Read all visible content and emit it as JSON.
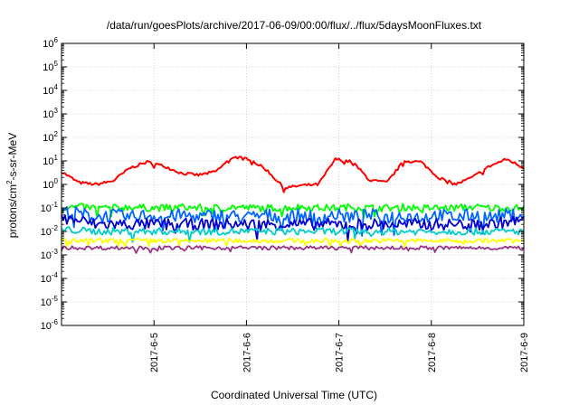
{
  "chart_data": {
    "type": "line",
    "title": "/data/run/goesPlots/archive/2017-06-09/00:00/flux/../flux/5daysMoonFluxes.txt",
    "xlabel": "Coordinated Universal Time (UTC)",
    "ylabel": "protons/cm2-s-sr-MeV",
    "y_scale": "log",
    "ylim": [
      1e-06,
      1000000.0
    ],
    "y_ticks": [
      {
        "base": "10",
        "exp": "-6"
      },
      {
        "base": "10",
        "exp": "-5"
      },
      {
        "base": "10",
        "exp": "-4"
      },
      {
        "base": "10",
        "exp": "-3"
      },
      {
        "base": "10",
        "exp": "-2"
      },
      {
        "base": "10",
        "exp": "-1"
      },
      {
        "base": "10",
        "exp": "0"
      },
      {
        "base": "10",
        "exp": "1"
      },
      {
        "base": "10",
        "exp": "2"
      },
      {
        "base": "10",
        "exp": "3"
      },
      {
        "base": "10",
        "exp": "4"
      },
      {
        "base": "10",
        "exp": "5"
      },
      {
        "base": "10",
        "exp": "6"
      }
    ],
    "xlim": [
      "2017-06-04 00:00",
      "2017-06-09 00:00"
    ],
    "x_ticks": [
      "2017-6-5",
      "2017-6-6",
      "2017-6-7",
      "2017-6-8",
      "2017-6-9"
    ],
    "grid": true,
    "series": [
      {
        "color": "#ff0000",
        "base_values": [
          3.5,
          1.2,
          1.0,
          1.4,
          5.0,
          9.0,
          6.0,
          3.0,
          2.5,
          3.5,
          15.0,
          12.0,
          4.0,
          0.7,
          0.9,
          1.0,
          12.0,
          9.0,
          1.5,
          1.2,
          10.0,
          9.0,
          2.0,
          1.0,
          2.0,
          6.0,
          12.0,
          5.0
        ]
      },
      {
        "color": "#00ff00",
        "base_values": [
          0.1,
          0.11,
          0.1,
          0.1,
          0.11,
          0.1,
          0.1,
          0.11,
          0.1,
          0.1,
          0.11,
          0.1,
          0.1,
          0.1,
          0.11,
          0.1,
          0.1,
          0.11,
          0.1,
          0.1,
          0.11,
          0.1,
          0.1,
          0.1,
          0.11,
          0.1,
          0.1,
          0.1
        ]
      },
      {
        "color": "#0066ff",
        "base_values": [
          0.07,
          0.06,
          0.04,
          0.05,
          0.04,
          0.05,
          0.04,
          0.05,
          0.04,
          0.05,
          0.045,
          0.04,
          0.05,
          0.04,
          0.05,
          0.04,
          0.05,
          0.04,
          0.05,
          0.04,
          0.05,
          0.04,
          0.05,
          0.04,
          0.05,
          0.04,
          0.05,
          0.05
        ]
      },
      {
        "color": "#0000cc",
        "base_values": [
          0.035,
          0.03,
          0.02,
          0.02,
          0.02,
          0.02,
          0.02,
          0.02,
          0.02,
          0.02,
          0.02,
          0.02,
          0.02,
          0.02,
          0.02,
          0.02,
          0.02,
          0.02,
          0.02,
          0.02,
          0.02,
          0.02,
          0.02,
          0.02,
          0.02,
          0.02,
          0.025,
          0.03
        ]
      },
      {
        "color": "#00cccc",
        "base_values": [
          0.012,
          0.011,
          0.01,
          0.01,
          0.01,
          0.01,
          0.01,
          0.01,
          0.01,
          0.01,
          0.01,
          0.01,
          0.01,
          0.01,
          0.01,
          0.01,
          0.01,
          0.01,
          0.01,
          0.01,
          0.01,
          0.01,
          0.01,
          0.01,
          0.01,
          0.01,
          0.01,
          0.01
        ]
      },
      {
        "color": "#ffff00",
        "base_values": [
          0.004,
          0.004,
          0.004,
          0.004,
          0.004,
          0.004,
          0.004,
          0.004,
          0.004,
          0.004,
          0.004,
          0.004,
          0.004,
          0.004,
          0.004,
          0.004,
          0.004,
          0.004,
          0.004,
          0.004,
          0.004,
          0.004,
          0.004,
          0.004,
          0.004,
          0.004,
          0.004,
          0.004
        ]
      },
      {
        "color": "#993388",
        "base_values": [
          0.002,
          0.002,
          0.002,
          0.002,
          0.002,
          0.002,
          0.002,
          0.002,
          0.002,
          0.002,
          0.002,
          0.002,
          0.002,
          0.002,
          0.002,
          0.002,
          0.002,
          0.002,
          0.002,
          0.002,
          0.002,
          0.002,
          0.002,
          0.002,
          0.002,
          0.002,
          0.002,
          0.002
        ]
      }
    ],
    "noise": [
      0.06,
      0.15,
      0.28,
      0.25,
      0.15,
      0.1,
      0.08
    ]
  }
}
